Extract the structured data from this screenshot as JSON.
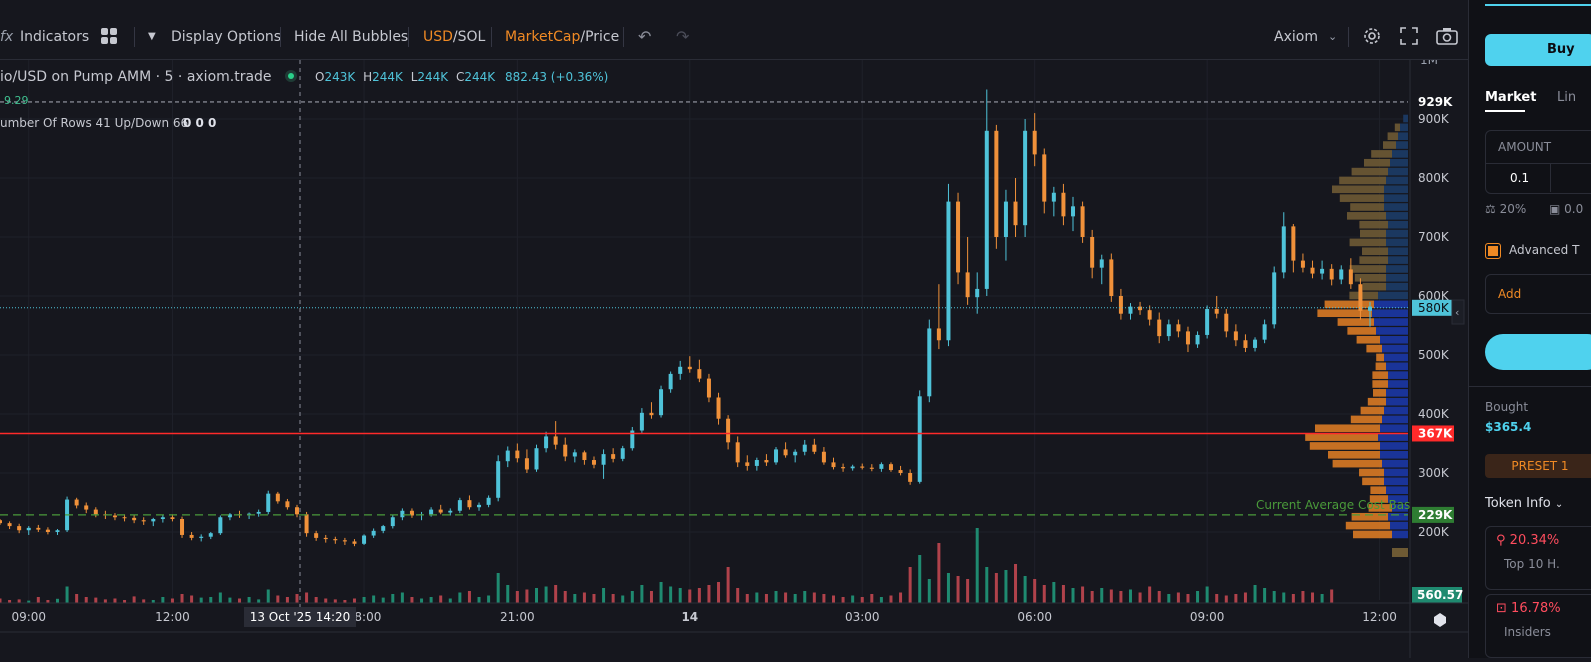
{
  "toolbar": {
    "indicators_label": "Indicators",
    "display_options_label": "Display Options",
    "hide_bubbles_label": "Hide All Bubbles",
    "currency_primary": "USD",
    "currency_secondary": "/SOL",
    "metric_primary": "MarketCap",
    "metric_secondary": "/Price",
    "source_label": "Axiom"
  },
  "legend": {
    "pair_title": "io/USD on Pump AMM · 5 · axiom.trade",
    "ohlc": {
      "o_label": "O",
      "o": "243K",
      "h_label": "H",
      "h": "244K",
      "l_label": "L",
      "l": "244K",
      "c_label": "C",
      "c": "244K",
      "change": "882.43 (+0.36%)"
    },
    "line2_value": "9.29",
    "line3": "umber Of Rows 41 Up/Down 66",
    "line3_values": "0  0  0"
  },
  "chart_data": {
    "type": "candlestick",
    "y_unit": "market cap (USD)",
    "ylim": [
      170000,
      1000000
    ],
    "yticks": [
      {
        "v": 200000,
        "label": "200K"
      },
      {
        "v": 300000,
        "label": "300K"
      },
      {
        "v": 400000,
        "label": "400K"
      },
      {
        "v": 500000,
        "label": "500K"
      },
      {
        "v": 600000,
        "label": "600K"
      },
      {
        "v": 700000,
        "label": "700K"
      },
      {
        "v": 800000,
        "label": "800K"
      },
      {
        "v": 900000,
        "label": "900K"
      }
    ],
    "top_tick": {
      "v": 1000000,
      "label": "1M"
    },
    "xticks": [
      {
        "i": 3,
        "label": "09:00"
      },
      {
        "i": 18,
        "label": "12:00"
      },
      {
        "i": 38,
        "label": "18:00"
      },
      {
        "i": 54,
        "label": "21:00"
      },
      {
        "i": 72,
        "label": "14",
        "bold": true
      },
      {
        "i": 90,
        "label": "03:00"
      },
      {
        "i": 108,
        "label": "06:00"
      },
      {
        "i": 126,
        "label": "09:00"
      },
      {
        "i": 144,
        "label": "12:00"
      }
    ],
    "crosshair_label": "13 Oct '25   14:20",
    "crosshair_value": 9.29,
    "price_labels": [
      {
        "v": 929000,
        "label": "929K",
        "kind": "max"
      },
      {
        "v": 580000,
        "label": "580K",
        "kind": "current"
      },
      {
        "v": 367000,
        "label": "367K",
        "kind": "level"
      },
      {
        "v": 229000,
        "label": "229K",
        "kind": "basis"
      }
    ],
    "volume_label": "560.57",
    "avg_cost_label": "Current Average Cost Basis",
    "candles": [
      [
        220,
        222,
        212,
        215
      ],
      [
        215,
        218,
        205,
        210
      ],
      [
        210,
        214,
        198,
        203
      ],
      [
        203,
        210,
        195,
        207
      ],
      [
        207,
        212,
        200,
        204
      ],
      [
        204,
        208,
        196,
        200
      ],
      [
        200,
        205,
        195,
        203
      ],
      [
        203,
        260,
        200,
        255
      ],
      [
        255,
        258,
        240,
        245
      ],
      [
        245,
        250,
        232,
        238
      ],
      [
        238,
        242,
        225,
        230
      ],
      [
        230,
        236,
        222,
        228
      ],
      [
        228,
        232,
        220,
        225
      ],
      [
        225,
        230,
        218,
        224
      ],
      [
        224,
        228,
        215,
        220
      ],
      [
        220,
        225,
        212,
        218
      ],
      [
        218,
        224,
        210,
        222
      ],
      [
        222,
        228,
        216,
        225
      ],
      [
        225,
        230,
        218,
        222
      ],
      [
        222,
        226,
        190,
        195
      ],
      [
        195,
        200,
        186,
        190
      ],
      [
        190,
        196,
        184,
        192
      ],
      [
        192,
        200,
        188,
        198
      ],
      [
        198,
        228,
        195,
        225
      ],
      [
        225,
        232,
        220,
        230
      ],
      [
        230,
        236,
        224,
        228
      ],
      [
        228,
        233,
        222,
        231
      ],
      [
        231,
        238,
        226,
        234
      ],
      [
        234,
        270,
        230,
        265
      ],
      [
        265,
        268,
        248,
        252
      ],
      [
        252,
        256,
        238,
        242
      ],
      [
        242,
        246,
        225,
        230
      ],
      [
        230,
        234,
        192,
        198
      ],
      [
        198,
        202,
        185,
        190
      ],
      [
        190,
        195,
        182,
        188
      ],
      [
        188,
        192,
        180,
        186
      ],
      [
        186,
        190,
        178,
        184
      ],
      [
        184,
        188,
        176,
        180
      ],
      [
        180,
        196,
        178,
        194
      ],
      [
        194,
        206,
        190,
        202
      ],
      [
        202,
        212,
        198,
        210
      ],
      [
        210,
        228,
        206,
        225
      ],
      [
        225,
        240,
        220,
        236
      ],
      [
        236,
        240,
        224,
        228
      ],
      [
        228,
        234,
        220,
        230
      ],
      [
        230,
        242,
        226,
        238
      ],
      [
        238,
        246,
        230,
        233
      ],
      [
        233,
        240,
        228,
        236
      ],
      [
        236,
        258,
        232,
        254
      ],
      [
        254,
        262,
        238,
        242
      ],
      [
        242,
        250,
        236,
        246
      ],
      [
        246,
        262,
        242,
        258
      ],
      [
        258,
        330,
        252,
        320
      ],
      [
        320,
        345,
        310,
        338
      ],
      [
        338,
        350,
        318,
        325
      ],
      [
        325,
        340,
        300,
        306
      ],
      [
        306,
        348,
        302,
        342
      ],
      [
        342,
        370,
        335,
        362
      ],
      [
        362,
        388,
        340,
        348
      ],
      [
        348,
        360,
        320,
        328
      ],
      [
        328,
        340,
        318,
        335
      ],
      [
        335,
        338,
        314,
        322
      ],
      [
        322,
        328,
        308,
        314
      ],
      [
        314,
        340,
        290,
        332
      ],
      [
        332,
        342,
        318,
        324
      ],
      [
        324,
        346,
        320,
        342
      ],
      [
        342,
        378,
        338,
        372
      ],
      [
        372,
        410,
        368,
        402
      ],
      [
        402,
        420,
        392,
        398
      ],
      [
        398,
        448,
        394,
        442
      ],
      [
        442,
        472,
        436,
        468
      ],
      [
        468,
        490,
        458,
        480
      ],
      [
        480,
        498,
        470,
        476
      ],
      [
        476,
        492,
        454,
        460
      ],
      [
        460,
        468,
        420,
        428
      ],
      [
        428,
        436,
        382,
        392
      ],
      [
        392,
        398,
        340,
        352
      ],
      [
        352,
        362,
        310,
        318
      ],
      [
        318,
        330,
        304,
        312
      ],
      [
        312,
        326,
        304,
        322
      ],
      [
        322,
        332,
        312,
        318
      ],
      [
        318,
        344,
        314,
        340
      ],
      [
        340,
        352,
        326,
        330
      ],
      [
        330,
        340,
        318,
        336
      ],
      [
        336,
        356,
        330,
        348
      ],
      [
        348,
        358,
        332,
        336
      ],
      [
        336,
        344,
        314,
        318
      ],
      [
        318,
        326,
        306,
        310
      ],
      [
        310,
        316,
        302,
        308
      ],
      [
        308,
        314,
        304,
        311
      ],
      [
        311,
        316,
        306,
        309
      ],
      [
        309,
        315,
        303,
        307
      ],
      [
        307,
        318,
        302,
        315
      ],
      [
        315,
        318,
        302,
        305
      ],
      [
        305,
        312,
        296,
        300
      ],
      [
        300,
        306,
        280,
        285
      ],
      [
        285,
        440,
        282,
        430
      ],
      [
        430,
        560,
        420,
        545
      ],
      [
        545,
        620,
        510,
        525
      ],
      [
        525,
        790,
        515,
        760
      ],
      [
        760,
        775,
        620,
        640
      ],
      [
        640,
        700,
        585,
        598
      ],
      [
        598,
        640,
        570,
        612
      ],
      [
        612,
        950,
        600,
        880
      ],
      [
        880,
        890,
        680,
        700
      ],
      [
        700,
        780,
        660,
        760
      ],
      [
        760,
        800,
        700,
        720
      ],
      [
        720,
        900,
        700,
        880
      ],
      [
        880,
        910,
        820,
        840
      ],
      [
        840,
        850,
        740,
        760
      ],
      [
        760,
        785,
        735,
        775
      ],
      [
        775,
        790,
        720,
        735
      ],
      [
        735,
        768,
        710,
        752
      ],
      [
        752,
        760,
        690,
        700
      ],
      [
        700,
        712,
        630,
        648
      ],
      [
        648,
        670,
        620,
        662
      ],
      [
        662,
        672,
        590,
        600
      ],
      [
        600,
        612,
        560,
        570
      ],
      [
        570,
        588,
        560,
        582
      ],
      [
        582,
        590,
        568,
        576
      ],
      [
        576,
        584,
        550,
        560
      ],
      [
        560,
        572,
        520,
        532
      ],
      [
        532,
        560,
        524,
        552
      ],
      [
        552,
        560,
        530,
        540
      ],
      [
        540,
        548,
        505,
        518
      ],
      [
        518,
        540,
        512,
        534
      ],
      [
        534,
        584,
        528,
        578
      ],
      [
        578,
        600,
        562,
        570
      ],
      [
        570,
        578,
        530,
        540
      ],
      [
        540,
        552,
        515,
        525
      ],
      [
        525,
        535,
        505,
        512
      ],
      [
        512,
        530,
        506,
        526
      ],
      [
        526,
        560,
        520,
        552
      ],
      [
        552,
        650,
        545,
        640
      ],
      [
        640,
        742,
        630,
        718
      ],
      [
        718,
        722,
        640,
        660
      ],
      [
        660,
        672,
        640,
        648
      ],
      [
        648,
        660,
        630,
        638
      ],
      [
        638,
        660,
        628,
        646
      ],
      [
        646,
        654,
        618,
        628
      ],
      [
        628,
        652,
        620,
        645
      ],
      [
        645,
        664,
        612,
        620
      ],
      [
        620,
        630,
        560,
        575
      ],
      [
        575,
        590,
        548,
        582
      ]
    ],
    "volumes": [
      0.15,
      0.1,
      0.12,
      0.08,
      0.2,
      0.1,
      0.14,
      0.55,
      0.3,
      0.2,
      0.18,
      0.12,
      0.15,
      0.1,
      0.22,
      0.12,
      0.1,
      0.2,
      0.15,
      0.3,
      0.25,
      0.18,
      0.2,
      0.35,
      0.18,
      0.15,
      0.2,
      0.12,
      0.45,
      0.25,
      0.2,
      0.3,
      0.35,
      0.2,
      0.15,
      0.12,
      0.1,
      0.15,
      0.2,
      0.25,
      0.18,
      0.3,
      0.35,
      0.2,
      0.15,
      0.2,
      0.25,
      0.15,
      0.35,
      0.4,
      0.2,
      0.25,
      1.0,
      0.6,
      0.4,
      0.45,
      0.5,
      0.55,
      0.6,
      0.4,
      0.3,
      0.35,
      0.3,
      0.5,
      0.3,
      0.25,
      0.4,
      0.6,
      0.4,
      0.7,
      0.55,
      0.5,
      0.45,
      0.5,
      0.6,
      0.7,
      1.2,
      0.5,
      0.3,
      0.35,
      0.3,
      0.4,
      0.35,
      0.3,
      0.4,
      0.35,
      0.3,
      0.25,
      0.2,
      0.25,
      0.2,
      0.3,
      0.2,
      0.25,
      0.35,
      1.2,
      1.6,
      0.8,
      2.0,
      1.0,
      0.9,
      0.8,
      2.5,
      1.2,
      1.0,
      1.1,
      1.3,
      0.9,
      0.8,
      0.6,
      0.7,
      0.6,
      0.5,
      0.55,
      0.4,
      0.5,
      0.45,
      0.4,
      0.45,
      0.35,
      0.55,
      0.4,
      0.3,
      0.35,
      0.3,
      0.4,
      0.55,
      0.3,
      0.25,
      0.3,
      0.35,
      0.6,
      0.5,
      0.4,
      0.35,
      0.3,
      0.4,
      0.35,
      0.3,
      0.45
    ],
    "volume_up_flags": "alternating by candle direction",
    "volume_profile": [
      {
        "v": 195000,
        "buy": 0.4,
        "sell": 0.75
      },
      {
        "v": 210000,
        "buy": 0.45,
        "sell": 0.85
      },
      {
        "v": 225000,
        "buy": 0.5,
        "sell": 0.7
      },
      {
        "v": 240000,
        "buy": 0.4,
        "sell": 0.45
      },
      {
        "v": 255000,
        "buy": 0.5,
        "sell": 0.35
      },
      {
        "v": 270000,
        "buy": 0.55,
        "sell": 0.3
      },
      {
        "v": 285000,
        "buy": 0.6,
        "sell": 0.42
      },
      {
        "v": 300000,
        "buy": 0.6,
        "sell": 0.48
      },
      {
        "v": 315000,
        "buy": 0.65,
        "sell": 0.95
      },
      {
        "v": 330000,
        "buy": 0.7,
        "sell": 1.0
      },
      {
        "v": 345000,
        "buy": 0.7,
        "sell": 1.35
      },
      {
        "v": 360000,
        "buy": 0.75,
        "sell": 1.4
      },
      {
        "v": 375000,
        "buy": 0.7,
        "sell": 1.25
      },
      {
        "v": 390000,
        "buy": 0.65,
        "sell": 0.6
      },
      {
        "v": 405000,
        "buy": 0.6,
        "sell": 0.45
      },
      {
        "v": 420000,
        "buy": 0.55,
        "sell": 0.35
      },
      {
        "v": 435000,
        "buy": 0.55,
        "sell": 0.25
      },
      {
        "v": 450000,
        "buy": 0.5,
        "sell": 0.3
      },
      {
        "v": 465000,
        "buy": 0.5,
        "sell": 0.3
      },
      {
        "v": 480000,
        "buy": 0.55,
        "sell": 0.2
      },
      {
        "v": 495000,
        "buy": 0.6,
        "sell": 0.15
      },
      {
        "v": 510000,
        "buy": 0.65,
        "sell": 0.3
      },
      {
        "v": 525000,
        "buy": 0.7,
        "sell": 0.45
      },
      {
        "v": 540000,
        "buy": 0.8,
        "sell": 0.55
      },
      {
        "v": 555000,
        "buy": 0.85,
        "sell": 0.7
      },
      {
        "v": 570000,
        "buy": 0.9,
        "sell": 1.05
      },
      {
        "v": 585000,
        "buy": 0.85,
        "sell": 0.95
      },
      {
        "v": 600000,
        "buy": 0.75,
        "sell": 0.55
      },
      {
        "v": 615000,
        "buy": 0.55,
        "sell": 0.45
      },
      {
        "v": 630000,
        "buy": 0.55,
        "sell": 0.6
      },
      {
        "v": 645000,
        "buy": 0.55,
        "sell": 0.7
      },
      {
        "v": 660000,
        "buy": 0.5,
        "sell": 0.55
      },
      {
        "v": 675000,
        "buy": 0.5,
        "sell": 0.5
      },
      {
        "v": 690000,
        "buy": 0.55,
        "sell": 0.7
      },
      {
        "v": 705000,
        "buy": 0.55,
        "sell": 0.5
      },
      {
        "v": 720000,
        "buy": 0.5,
        "sell": 0.55
      },
      {
        "v": 735000,
        "buy": 0.55,
        "sell": 0.75
      },
      {
        "v": 750000,
        "buy": 0.6,
        "sell": 0.65
      },
      {
        "v": 765000,
        "buy": 0.6,
        "sell": 0.85
      },
      {
        "v": 780000,
        "buy": 0.6,
        "sell": 1.0
      },
      {
        "v": 795000,
        "buy": 0.55,
        "sell": 0.9
      },
      {
        "v": 810000,
        "buy": 0.5,
        "sell": 0.7
      },
      {
        "v": 825000,
        "buy": 0.45,
        "sell": 0.5
      },
      {
        "v": 840000,
        "buy": 0.4,
        "sell": 0.4
      },
      {
        "v": 855000,
        "buy": 0.3,
        "sell": 0.25
      },
      {
        "v": 870000,
        "buy": 0.25,
        "sell": 0.2
      },
      {
        "v": 885000,
        "buy": 0.2,
        "sell": 0.1
      },
      {
        "v": 900000,
        "buy": 0.12,
        "sell": 0
      }
    ],
    "colors": {
      "up": "#4fc3d9",
      "down": "#f0913a",
      "vol_up": "#1f8a70",
      "vol_down": "#b0424b",
      "level": "#ff2a2a",
      "basis": "#4a9a3a",
      "current": "#4fc3d9",
      "profile_buy": "#1f3a8a",
      "profile_sell": "#d97a24"
    }
  },
  "right_panel": {
    "buy_label": "Buy",
    "tab_market": "Market",
    "tab_limit": "Lin",
    "amount_label": "AMOUNT",
    "amount_value": "0.1",
    "slippage": "20%",
    "priority": "0.0",
    "advanced_label": "Advanced T",
    "add_label": "Add",
    "bought_label": "Bought",
    "bought_value": "$365.4",
    "preset_label": "PRESET 1",
    "token_info_label": "Token Info",
    "top10_value": "20.34%",
    "top10_label": "Top 10 H.",
    "insiders_value": "16.78%",
    "insiders_label": "Insiders"
  }
}
